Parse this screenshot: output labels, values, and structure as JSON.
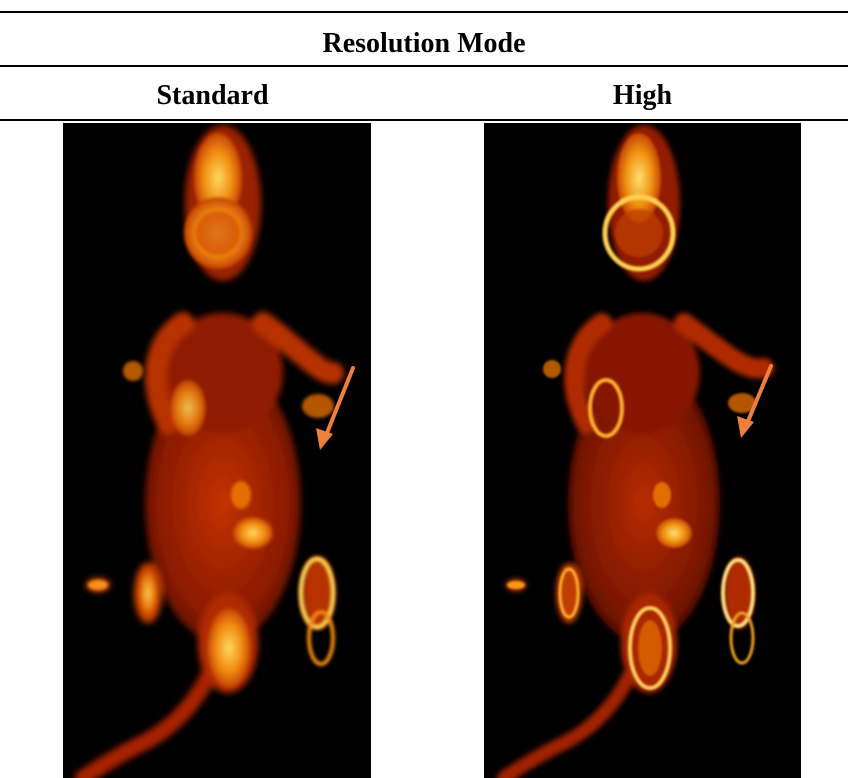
{
  "table": {
    "title": "Resolution Mode",
    "columns": [
      {
        "label": "Standard"
      },
      {
        "label": "High"
      }
    ]
  },
  "colors": {
    "background": "#000000",
    "rule": "#000000",
    "arrow": "#ef7f3a",
    "colormap": [
      "#2a0200",
      "#7a1200",
      "#c43200",
      "#f06a00",
      "#ffb020",
      "#ffe890"
    ]
  },
  "images": [
    {
      "name": "pet-image-standard",
      "description_icon": "mouse-pet-scan",
      "arrow": true
    },
    {
      "name": "pet-image-high",
      "description_icon": "mouse-pet-scan",
      "arrow": true
    }
  ]
}
